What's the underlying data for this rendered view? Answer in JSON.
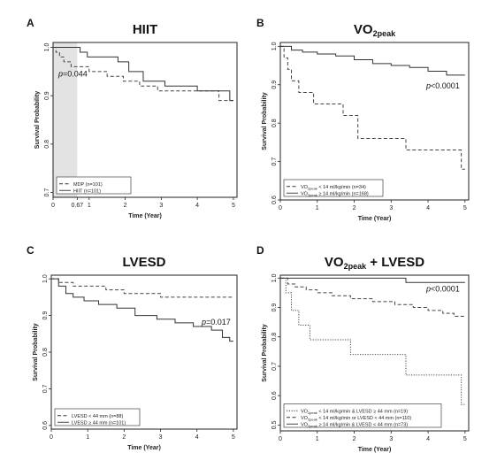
{
  "chart_data": [
    {
      "panel": "A",
      "type": "line",
      "title": "HIIT",
      "xlabel": "Time (Year)",
      "ylabel": "Survival Probability",
      "xlim": [
        0,
        5.1
      ],
      "ylim": [
        0.69,
        1.01
      ],
      "xticks": [
        0,
        0.67,
        1,
        2,
        3,
        4,
        5
      ],
      "xticklabels": [
        "0",
        "0.67",
        "1",
        "2",
        "3",
        "4",
        "5"
      ],
      "yticks": [
        0.7,
        0.8,
        0.9,
        1.0
      ],
      "yticklabels": [
        "0.7",
        "0.8",
        "0.9",
        "1.0"
      ],
      "shaded_region": [
        0,
        0.67
      ],
      "pvalue": "p=0.044",
      "legend_position": "bottom-left",
      "series": [
        {
          "name": "MDP (n=101)",
          "style": "dashed",
          "x": [
            0,
            0.08,
            0.18,
            0.3,
            0.5,
            1.0,
            1.5,
            1.95,
            2.4,
            2.9,
            4.6,
            5.0
          ],
          "y": [
            1.0,
            0.99,
            0.98,
            0.97,
            0.96,
            0.95,
            0.94,
            0.93,
            0.92,
            0.91,
            0.89,
            0.89
          ]
        },
        {
          "name": "HIIT (n=101)",
          "style": "solid",
          "x": [
            0,
            0.75,
            0.95,
            1.8,
            2.1,
            2.5,
            3.1,
            4.0,
            4.9,
            5.0
          ],
          "y": [
            1.0,
            0.99,
            0.98,
            0.97,
            0.95,
            0.93,
            0.92,
            0.91,
            0.89,
            0.89
          ]
        }
      ]
    },
    {
      "panel": "B",
      "type": "line",
      "title": "VO",
      "title_sub": "2peak",
      "xlabel": "Time (Year)",
      "ylabel": "Survival Probability",
      "xlim": [
        0,
        5.1
      ],
      "ylim": [
        0.6,
        1.01
      ],
      "xticks": [
        0,
        1,
        2,
        3,
        4,
        5
      ],
      "xticklabels": [
        "0",
        "1",
        "2",
        "3",
        "4",
        "5"
      ],
      "yticks": [
        0.6,
        0.7,
        0.8,
        0.9,
        1.0
      ],
      "yticklabels": [
        "0.6",
        "0.7",
        "0.8",
        "0.9",
        "1.0"
      ],
      "pvalue": "p<0.0001",
      "legend_position": "bottom-left",
      "series": [
        {
          "name": "VO2peak < 14 ml/kg/min (n=34)",
          "style": "dashed",
          "x": [
            0,
            0.1,
            0.2,
            0.3,
            0.5,
            0.9,
            1.7,
            2.1,
            3.4,
            4.9,
            5.0
          ],
          "y": [
            1.0,
            0.97,
            0.94,
            0.91,
            0.88,
            0.85,
            0.82,
            0.76,
            0.73,
            0.68,
            0.68
          ]
        },
        {
          "name": "VO2peak ≥ 14 ml/kg/min (n=168)",
          "style": "solid",
          "x": [
            0,
            0.3,
            0.6,
            1.0,
            1.5,
            2.0,
            2.5,
            3.0,
            3.5,
            4.0,
            4.5,
            5.0
          ],
          "y": [
            1.0,
            0.99,
            0.985,
            0.98,
            0.975,
            0.965,
            0.955,
            0.95,
            0.945,
            0.935,
            0.925,
            0.925
          ]
        }
      ]
    },
    {
      "panel": "C",
      "type": "line",
      "title": "LVESD",
      "xlabel": "Time (Year)",
      "ylabel": "Survival Probability",
      "xlim": [
        0,
        5.1
      ],
      "ylim": [
        0.59,
        1.01
      ],
      "xticks": [
        0,
        1,
        2,
        3,
        4,
        5
      ],
      "xticklabels": [
        "0",
        "1",
        "2",
        "3",
        "4",
        "5"
      ],
      "yticks": [
        0.6,
        0.7,
        0.8,
        0.9,
        1.0
      ],
      "yticklabels": [
        "0.6",
        "0.7",
        "0.8",
        "0.9",
        "1.0"
      ],
      "pvalue": "p=0.017",
      "legend_position": "bottom-left",
      "series": [
        {
          "name": "LVESD < 44 mm (n=88)",
          "style": "dashed",
          "x": [
            0,
            0.2,
            0.6,
            1.5,
            2.0,
            3.0,
            5.0
          ],
          "y": [
            1.0,
            0.99,
            0.98,
            0.97,
            0.96,
            0.95,
            0.95
          ]
        },
        {
          "name": "LVESD ≥ 44 mm (n=101)",
          "style": "solid",
          "x": [
            0,
            0.2,
            0.4,
            0.6,
            0.9,
            1.3,
            1.8,
            2.3,
            2.9,
            3.4,
            3.9,
            4.4,
            4.7,
            4.9,
            5.0
          ],
          "y": [
            1.0,
            0.98,
            0.96,
            0.95,
            0.94,
            0.93,
            0.92,
            0.9,
            0.89,
            0.88,
            0.87,
            0.86,
            0.84,
            0.83,
            0.83
          ]
        }
      ]
    },
    {
      "panel": "D",
      "type": "line",
      "title": "VO",
      "title_sub": "2peak",
      "title_rest": " + LVESD",
      "xlabel": "Time (Year)",
      "ylabel": "Survival Probability",
      "xlim": [
        0,
        5.1
      ],
      "ylim": [
        0.48,
        1.01
      ],
      "xticks": [
        0,
        1,
        2,
        3,
        4,
        5
      ],
      "xticklabels": [
        "0",
        "1",
        "2",
        "3",
        "4",
        "5"
      ],
      "yticks": [
        0.5,
        0.6,
        0.7,
        0.8,
        0.9,
        1.0
      ],
      "yticklabels": [
        "0.5",
        "0.6",
        "0.7",
        "0.8",
        "0.9",
        "1.0"
      ],
      "pvalue": "p<0.0001",
      "legend_position": "bottom-left",
      "series": [
        {
          "name": "VO2peak < 14 ml/kg/min & LVESD ≥ 44 mm (n=19)",
          "style": "dotted",
          "x": [
            0,
            0.15,
            0.3,
            0.5,
            0.8,
            1.9,
            3.4,
            4.9,
            5.0
          ],
          "y": [
            1.0,
            0.95,
            0.89,
            0.84,
            0.79,
            0.74,
            0.67,
            0.57,
            0.57
          ]
        },
        {
          "name": "VO2peak < 14 ml/kg/min or LVESD < 44 mm (n=110)",
          "style": "dashed",
          "x": [
            0,
            0.2,
            0.4,
            0.7,
            1.0,
            1.4,
            1.9,
            2.5,
            3.1,
            3.6,
            4.0,
            4.4,
            4.7,
            5.0
          ],
          "y": [
            1.0,
            0.98,
            0.97,
            0.96,
            0.95,
            0.94,
            0.93,
            0.92,
            0.91,
            0.9,
            0.89,
            0.88,
            0.87,
            0.87
          ]
        },
        {
          "name": "VO2peak ≥ 14 ml/kg/min & LVESD < 44 mm (n=73)",
          "style": "solid",
          "x": [
            0,
            3.4,
            5.0
          ],
          "y": [
            1.0,
            0.985,
            0.985
          ]
        }
      ]
    }
  ]
}
